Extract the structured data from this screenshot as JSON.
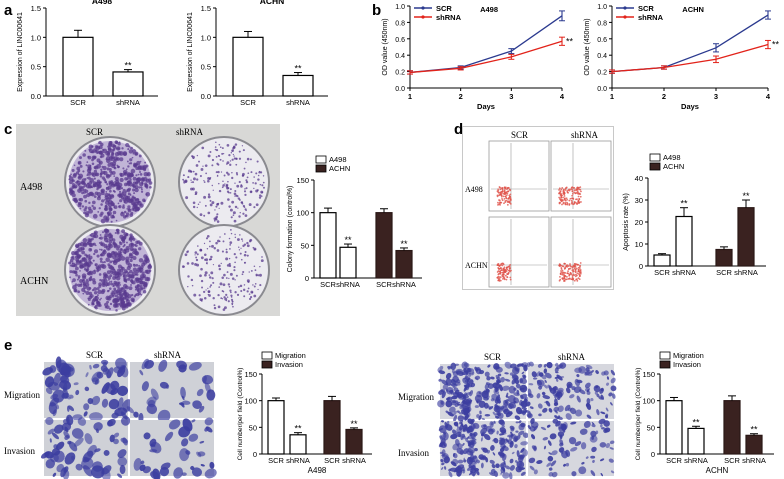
{
  "panels": {
    "a": "a",
    "b": "b",
    "c": "c",
    "d": "d",
    "e": "e"
  },
  "chart_data": [
    {
      "id": "a1",
      "type": "bar",
      "title": "A498",
      "categories": [
        "SCR",
        "shRNA"
      ],
      "values": [
        1.0,
        0.41
      ],
      "errors": [
        0.12,
        0.04
      ],
      "ylabel": "Expression of LINC00641",
      "ylim": [
        0,
        1.5
      ],
      "yticks": [
        "0.0",
        "0.5",
        "1.0",
        "1.5"
      ],
      "significance": [
        "",
        "**"
      ],
      "fills": [
        "#ffffff",
        "#ffffff"
      ]
    },
    {
      "id": "a2",
      "type": "bar",
      "title": "ACHN",
      "categories": [
        "SCR",
        "shRNA"
      ],
      "values": [
        1.0,
        0.35
      ],
      "errors": [
        0.1,
        0.05
      ],
      "ylabel": "Expression of LINC00641",
      "ylim": [
        0,
        1.5
      ],
      "yticks": [
        "0.0",
        "0.5",
        "1.0",
        "1.5"
      ],
      "significance": [
        "",
        "**"
      ],
      "fills": [
        "#ffffff",
        "#ffffff"
      ]
    },
    {
      "id": "b1",
      "type": "line",
      "title": "A498",
      "x": [
        1,
        2,
        3,
        4
      ],
      "xlabel": "Days",
      "ylabel": "OD value (450nm)",
      "ylim": [
        0,
        1.0
      ],
      "yticks": [
        "0.0",
        "0.2",
        "0.4",
        "0.6",
        "0.8",
        "1.0"
      ],
      "xticks": [
        "1",
        "2",
        "3",
        "4"
      ],
      "series": [
        {
          "name": "SCR",
          "values": [
            0.19,
            0.25,
            0.45,
            0.88
          ],
          "errors": [
            0.02,
            0.02,
            0.03,
            0.06
          ],
          "color": "#2b3a8f"
        },
        {
          "name": "shRNA",
          "values": [
            0.19,
            0.24,
            0.38,
            0.57
          ],
          "errors": [
            0.02,
            0.02,
            0.03,
            0.05
          ],
          "color": "#e2231a"
        }
      ],
      "significance": "**",
      "legend": "top-left"
    },
    {
      "id": "b2",
      "type": "line",
      "title": "ACHN",
      "x": [
        1,
        2,
        3,
        4
      ],
      "xlabel": "Days",
      "ylabel": "OD value (450nm)",
      "ylim": [
        0,
        1.0
      ],
      "yticks": [
        "0.0",
        "0.2",
        "0.4",
        "0.6",
        "0.8",
        "1.0"
      ],
      "xticks": [
        "1",
        "2",
        "3",
        "4"
      ],
      "series": [
        {
          "name": "SCR",
          "values": [
            0.2,
            0.25,
            0.49,
            0.89
          ],
          "errors": [
            0.02,
            0.02,
            0.05,
            0.05
          ],
          "color": "#2b3a8f"
        },
        {
          "name": "shRNA",
          "values": [
            0.2,
            0.25,
            0.35,
            0.53
          ],
          "errors": [
            0.02,
            0.02,
            0.04,
            0.05
          ],
          "color": "#e2231a"
        }
      ],
      "significance": "**",
      "legend": "top-left"
    },
    {
      "id": "c",
      "type": "bar",
      "title": "",
      "categories": [
        "SCR",
        "shRNA",
        "SCR",
        "shRNA"
      ],
      "values": [
        100,
        47,
        100,
        42
      ],
      "errors": [
        7,
        5,
        6,
        4
      ],
      "fills": [
        "#ffffff",
        "#ffffff",
        "#3a2220",
        "#3a2220"
      ],
      "significance": [
        "",
        "**",
        "",
        "**"
      ],
      "ylabel": "Colony formation (control%)",
      "ylim": [
        0,
        150
      ],
      "yticks": [
        "0",
        "50",
        "100",
        "150"
      ],
      "series": [
        {
          "name": "A498",
          "color": "#ffffff"
        },
        {
          "name": "ACHN",
          "color": "#3a2220"
        }
      ],
      "legend": "top-left"
    },
    {
      "id": "d",
      "type": "bar",
      "title": "",
      "categories": [
        "SCR",
        "shRNA",
        "SCR",
        "shRNA"
      ],
      "values": [
        5,
        22.5,
        7.5,
        26.5
      ],
      "errors": [
        0.6,
        4,
        1.2,
        3.5
      ],
      "fills": [
        "#ffffff",
        "#ffffff",
        "#3a2220",
        "#3a2220"
      ],
      "significance": [
        "",
        "**",
        "",
        "**"
      ],
      "ylabel": "Apoptosis rate (%)",
      "ylim": [
        0,
        40
      ],
      "yticks": [
        "0",
        "10",
        "20",
        "30",
        "40"
      ],
      "series": [
        {
          "name": "A498",
          "color": "#ffffff"
        },
        {
          "name": "ACHN",
          "color": "#3a2220"
        }
      ],
      "legend": "top-left"
    },
    {
      "id": "e1",
      "type": "bar",
      "title": "",
      "categories": [
        "SCR",
        "shRNA",
        "SCR",
        "shRNA"
      ],
      "values": [
        100,
        36,
        100,
        46
      ],
      "errors": [
        5,
        4,
        8,
        3
      ],
      "fills": [
        "#ffffff",
        "#ffffff",
        "#3a2220",
        "#3a2220"
      ],
      "significance": [
        "",
        "**",
        "",
        "**"
      ],
      "ylabel": "Cell number/per field (Control%)",
      "xlabel": "A498",
      "ylim": [
        0,
        150
      ],
      "yticks": [
        "0",
        "50",
        "100",
        "150"
      ],
      "series": [
        {
          "name": "Migration",
          "color": "#ffffff"
        },
        {
          "name": "Invasion",
          "color": "#3a2220"
        }
      ],
      "legend": "top-left"
    },
    {
      "id": "e2",
      "type": "bar",
      "title": "",
      "categories": [
        "SCR",
        "shRNA",
        "SCR",
        "shRNA"
      ],
      "values": [
        100,
        48,
        100,
        35
      ],
      "errors": [
        6,
        4,
        9,
        3
      ],
      "fills": [
        "#ffffff",
        "#ffffff",
        "#3a2220",
        "#3a2220"
      ],
      "significance": [
        "",
        "**",
        "",
        "**"
      ],
      "ylabel": "Cell number/per field (Control%)",
      "xlabel": "ACHN",
      "ylim": [
        0,
        150
      ],
      "yticks": [
        "0",
        "50",
        "100",
        "150"
      ],
      "series": [
        {
          "name": "Migration",
          "color": "#ffffff"
        },
        {
          "name": "Invasion",
          "color": "#3a2220"
        }
      ],
      "legend": "top-left"
    }
  ],
  "colony_plates": {
    "col_labels": [
      "SCR",
      "shRNA"
    ],
    "row_labels": [
      "A498",
      "ACHN"
    ],
    "stain_color": "#5a3b8f"
  },
  "flow_cytometry": {
    "col_labels": [
      "SCR",
      "shRNA"
    ],
    "row_labels": [
      "A498",
      "ACHN"
    ],
    "dot_color": "#e0524a"
  },
  "transwell_a498": {
    "col_labels": [
      "SCR",
      "shRNA"
    ],
    "row_labels": [
      "Migration",
      "Invasion"
    ],
    "stain_color": "#3c3ea0"
  },
  "transwell_achn": {
    "col_labels": [
      "SCR",
      "shRNA"
    ],
    "row_labels": [
      "Migration",
      "Invasion"
    ],
    "stain_color": "#3c3ea0"
  }
}
